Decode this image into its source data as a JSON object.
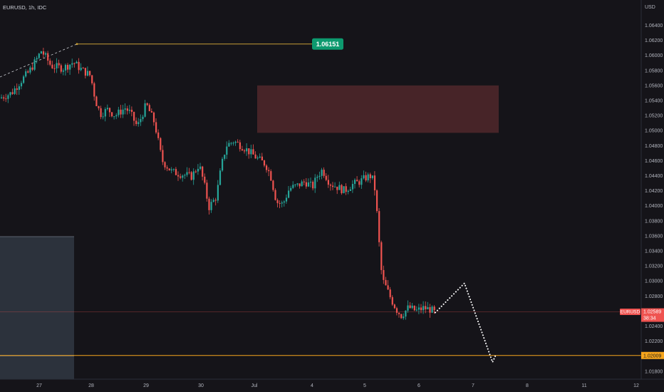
{
  "header": {
    "symbol_title": "EURUSD, 1h, IDC",
    "currency": "USD"
  },
  "chart_data": {
    "type": "candlestick",
    "symbol": "EURUSD",
    "timeframe": "1h",
    "source": "IDC",
    "y_axis": {
      "unit": "USD",
      "ticks": [
        "1.06400",
        "1.06200",
        "1.06000",
        "1.05800",
        "1.05600",
        "1.05400",
        "1.05200",
        "1.05000",
        "1.04800",
        "1.04600",
        "1.04400",
        "1.04200",
        "1.04000",
        "1.03800",
        "1.03600",
        "1.03400",
        "1.03200",
        "1.03000",
        "1.02800",
        "1.02600",
        "1.02400",
        "1.02200",
        "1.01800"
      ]
    },
    "x_axis": {
      "ticks": [
        "27",
        "28",
        "29",
        "30",
        "Jul",
        "4",
        "5",
        "6",
        "7",
        "8",
        "11",
        "12"
      ]
    },
    "price_path": [
      [
        0,
        1.0543
      ],
      [
        0.25,
        1.055
      ],
      [
        0.45,
        1.0567
      ],
      [
        0.6,
        1.0578
      ],
      [
        0.75,
        1.0594
      ],
      [
        0.85,
        1.0606
      ],
      [
        0.93,
        1.0599
      ],
      [
        1.05,
        1.0586
      ],
      [
        1.3,
        1.0583
      ],
      [
        1.5,
        1.0591
      ],
      [
        1.65,
        1.0582
      ],
      [
        1.85,
        1.0573
      ],
      [
        1.95,
        1.054
      ],
      [
        2.05,
        1.0522
      ],
      [
        2.2,
        1.0528
      ],
      [
        2.35,
        1.052
      ],
      [
        2.55,
        1.053
      ],
      [
        2.65,
        1.0524
      ],
      [
        2.8,
        1.0505
      ],
      [
        2.98,
        1.0535
      ],
      [
        3.15,
        1.051
      ],
      [
        3.3,
        1.046
      ],
      [
        3.5,
        1.0445
      ],
      [
        3.7,
        1.0442
      ],
      [
        3.9,
        1.0439
      ],
      [
        4.05,
        1.0455
      ],
      [
        4.15,
        1.043
      ],
      [
        4.25,
        1.0398
      ],
      [
        4.4,
        1.0412
      ],
      [
        4.5,
        1.0452
      ],
      [
        4.6,
        1.048
      ],
      [
        4.75,
        1.0486
      ],
      [
        4.95,
        1.0478
      ],
      [
        5.1,
        1.047
      ],
      [
        5.25,
        1.0462
      ],
      [
        5.4,
        1.0455
      ],
      [
        5.5,
        1.044
      ],
      [
        5.62,
        1.0405
      ],
      [
        5.75,
        1.0402
      ],
      [
        5.88,
        1.0423
      ],
      [
        6.05,
        1.0427
      ],
      [
        6.2,
        1.0432
      ],
      [
        6.35,
        1.0425
      ],
      [
        6.45,
        1.044
      ],
      [
        6.55,
        1.0448
      ],
      [
        6.7,
        1.043
      ],
      [
        6.85,
        1.0425
      ],
      [
        7.0,
        1.042
      ],
      [
        7.15,
        1.0428
      ],
      [
        7.3,
        1.0432
      ],
      [
        7.45,
        1.0438
      ],
      [
        7.55,
        1.044
      ],
      [
        7.62,
        1.042
      ],
      [
        7.68,
        1.037
      ],
      [
        7.73,
        1.032
      ],
      [
        7.78,
        1.03
      ],
      [
        7.85,
        1.029
      ],
      [
        7.95,
        1.0275
      ],
      [
        8.05,
        1.0262
      ],
      [
        8.15,
        1.0254
      ],
      [
        8.3,
        1.0265
      ],
      [
        8.45,
        1.026
      ],
      [
        8.6,
        1.0264
      ],
      [
        8.75,
        1.0262
      ],
      [
        8.82,
        1.0258
      ]
    ],
    "hline_high": {
      "value": 1.06151,
      "label": "1.06151"
    },
    "hline_target": {
      "value": 1.02009,
      "label": "1.02009"
    },
    "current_price": {
      "symbol_label": "EURUSD",
      "value": "1.02589",
      "countdown": "38:34"
    },
    "resistance_zone": {
      "low": 1.0497,
      "high": 1.056
    },
    "projection_path": [
      [
        8.82,
        1.0258
      ],
      [
        9.6,
        1.0297
      ],
      [
        10.35,
        1.0192
      ],
      [
        10.45,
        1.0203
      ]
    ],
    "colors": {
      "background": "#151419",
      "candle_up": "#26a69a",
      "candle_down": "#ef5350",
      "high_line": "#c69d35",
      "target_line": "#f7a51c",
      "label_green": "#0d9a6f",
      "label_red": "#ef5350",
      "label_orange": "#f7a51c",
      "zone": "#4a2529",
      "left_box": "#2f3540"
    }
  }
}
